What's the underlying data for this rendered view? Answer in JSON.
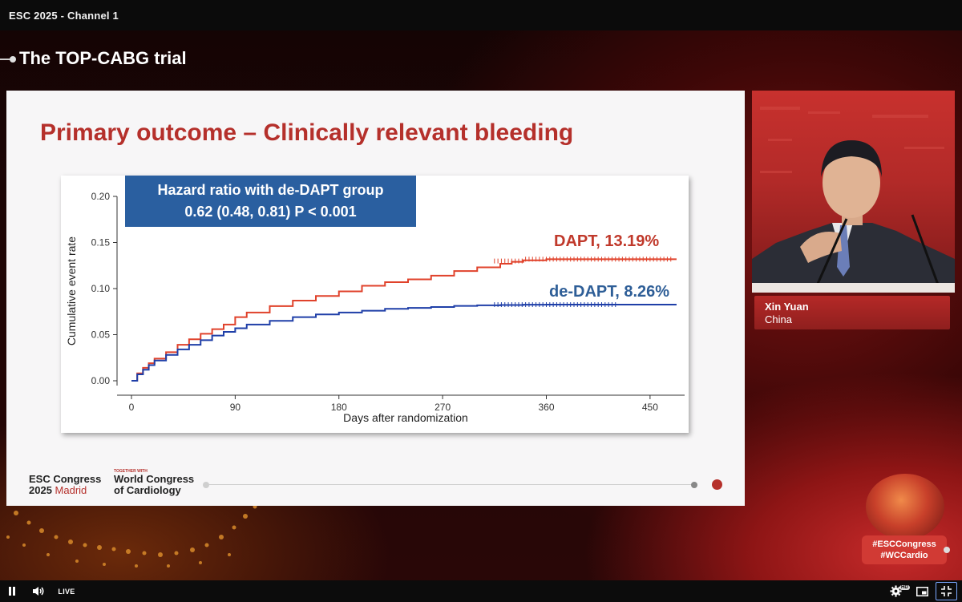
{
  "window": {
    "title": "ESC 2025 - Channel 1"
  },
  "session": {
    "title": "The TOP-CABG trial"
  },
  "slide": {
    "heading": "Primary outcome – Clinically relevant bleeding",
    "hr_box": {
      "line1": "Hazard ratio with de-DAPT group",
      "line2": "0.62 (0.48, 0.81) P < 0.001"
    },
    "logos": {
      "esc_line1": "ESC Congress",
      "esc_year": "2025",
      "esc_city": "Madrid",
      "together": "TOGETHER WITH",
      "wcc_line1": "World Congress",
      "wcc_line2": "of Cardiology"
    }
  },
  "chart_data": {
    "type": "line",
    "xlabel": "Days after randomization",
    "ylabel": "Cumulative event rate",
    "xlim": [
      0,
      480
    ],
    "ylim": [
      0,
      0.2
    ],
    "x_ticks": [
      0,
      90,
      180,
      270,
      360,
      450
    ],
    "y_ticks": [
      "0.00",
      "0.05",
      "0.10",
      "0.15",
      "0.20"
    ],
    "series": [
      {
        "name": "DAPT, 13.19%",
        "color": "#e0422b",
        "x": [
          0,
          5,
          10,
          15,
          20,
          30,
          40,
          50,
          60,
          70,
          80,
          90,
          100,
          120,
          140,
          160,
          180,
          200,
          220,
          240,
          260,
          280,
          300,
          320,
          330,
          340,
          360,
          400,
          450,
          473
        ],
        "y": [
          0,
          0.008,
          0.014,
          0.019,
          0.024,
          0.031,
          0.039,
          0.045,
          0.051,
          0.056,
          0.061,
          0.069,
          0.074,
          0.081,
          0.087,
          0.092,
          0.097,
          0.103,
          0.107,
          0.11,
          0.114,
          0.119,
          0.123,
          0.127,
          0.129,
          0.1306,
          0.1319,
          0.1319,
          0.1319,
          0.1319
        ]
      },
      {
        "name": "de-DAPT, 8.26%",
        "color": "#1f3fa8",
        "x": [
          0,
          5,
          10,
          15,
          20,
          30,
          40,
          50,
          60,
          70,
          80,
          90,
          100,
          120,
          140,
          160,
          180,
          200,
          220,
          240,
          260,
          280,
          300,
          320,
          340,
          360,
          400,
          450,
          473
        ],
        "y": [
          0,
          0.007,
          0.012,
          0.017,
          0.022,
          0.028,
          0.034,
          0.039,
          0.044,
          0.049,
          0.053,
          0.057,
          0.061,
          0.065,
          0.069,
          0.072,
          0.074,
          0.076,
          0.078,
          0.079,
          0.08,
          0.0812,
          0.0818,
          0.0822,
          0.0825,
          0.0826,
          0.0826,
          0.0826,
          0.0826
        ]
      }
    ]
  },
  "speaker": {
    "name": "Xin Yuan",
    "country": "China"
  },
  "hashtags": {
    "line1": "#ESCCongress",
    "line2": "#WCCardio"
  },
  "controls": {
    "pause_icon": "pause-icon",
    "volume_icon": "volume-icon",
    "live_label": "LIVE",
    "settings_icon": "gear-icon",
    "hd_badge": "HD",
    "pip_icon": "picture-in-picture-icon",
    "exit_fullscreen_icon": "exit-fullscreen-icon"
  }
}
